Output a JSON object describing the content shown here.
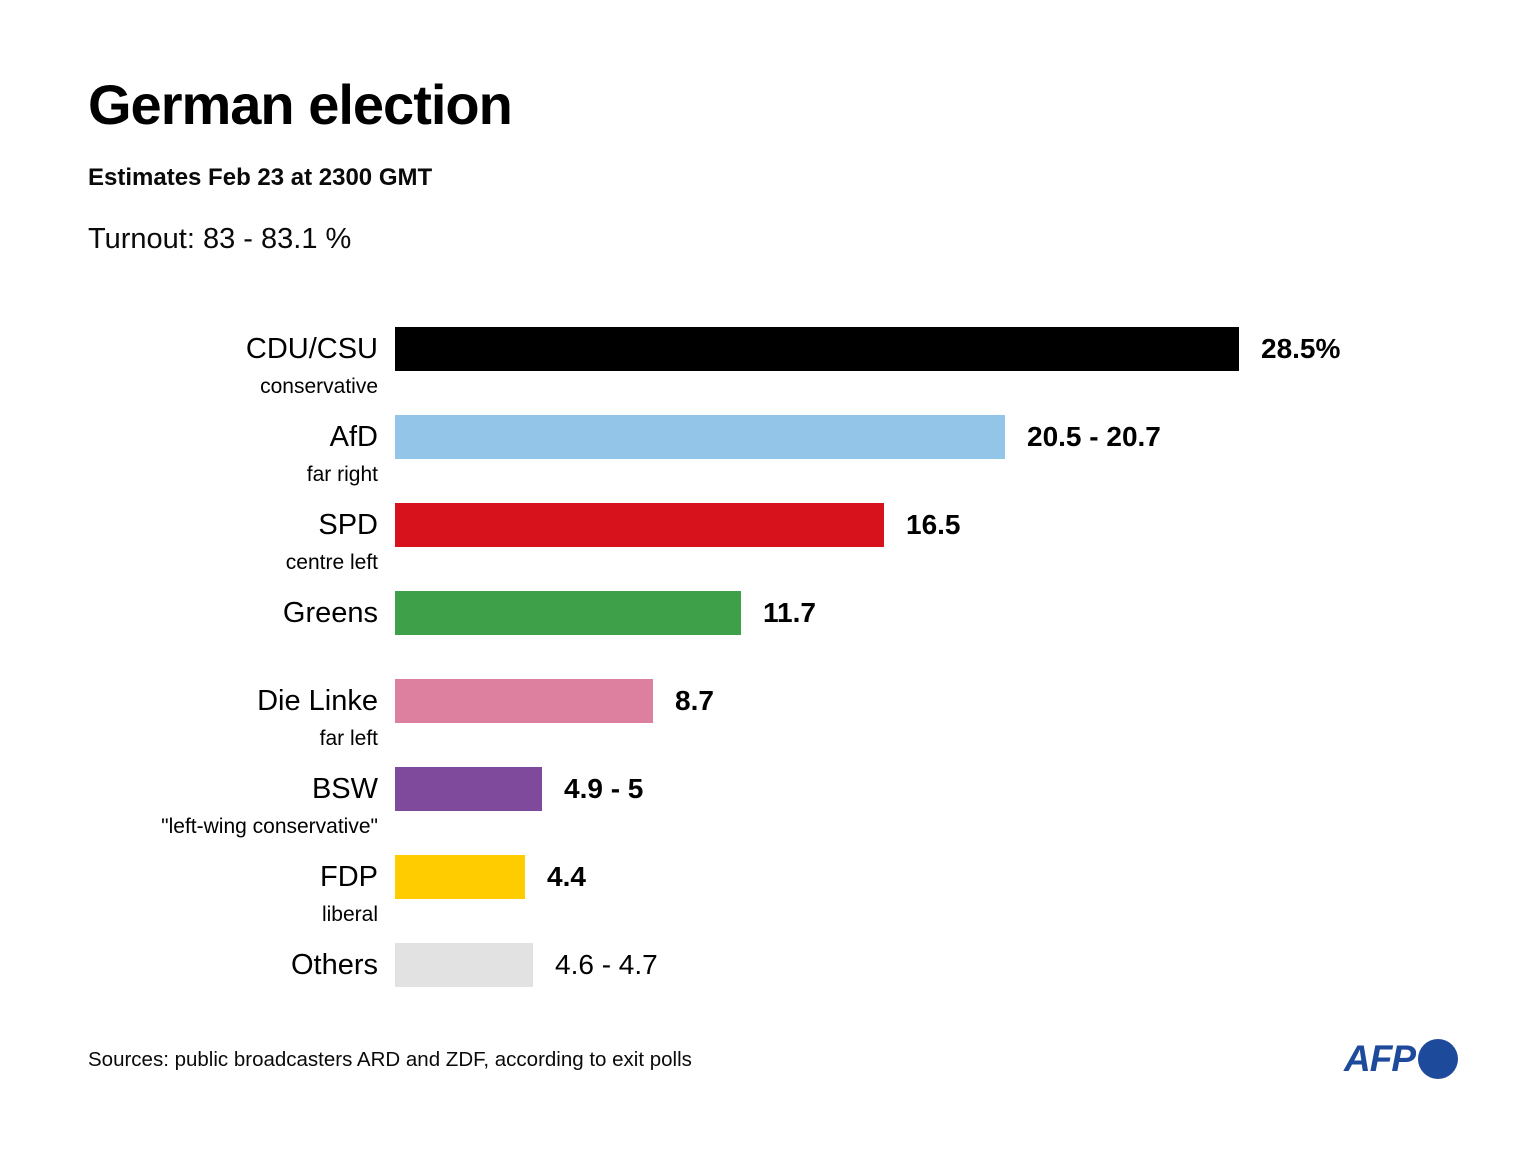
{
  "title": "German election",
  "subtitle": "Estimates Feb 23 at 2300 GMT",
  "turnout": "Turnout: 83 - 83.1 %",
  "source_note": "Sources: public broadcasters ARD and ZDF, according to exit polls",
  "logo": {
    "text": "AFP",
    "color": "#1E4A9C"
  },
  "chart_data": {
    "type": "bar",
    "orientation": "horizontal",
    "unit": "%",
    "xlim": [
      0,
      30
    ],
    "grid": false,
    "categories": [
      "CDU/CSU",
      "AfD",
      "SPD",
      "Greens",
      "Die Linke",
      "BSW",
      "FDP",
      "Others"
    ],
    "rows": [
      {
        "party": "CDU/CSU",
        "descriptor": "conservative",
        "value": 28.5,
        "value_label": "28.5%",
        "color": "#000000",
        "bold_value": true
      },
      {
        "party": "AfD",
        "descriptor": "far right",
        "value": 20.6,
        "value_range": [
          20.5,
          20.7
        ],
        "value_label": "20.5 - 20.7",
        "color": "#92C5E8",
        "bold_value": true
      },
      {
        "party": "SPD",
        "descriptor": "centre left",
        "value": 16.5,
        "value_label": "16.5",
        "color": "#D8121C",
        "bold_value": true
      },
      {
        "party": "Greens",
        "descriptor": "",
        "value": 11.7,
        "value_label": "11.7",
        "color": "#3FA04A",
        "bold_value": true
      },
      {
        "party": "Die Linke",
        "descriptor": "far left",
        "value": 8.7,
        "value_label": "8.7",
        "color": "#DD7F9F",
        "bold_value": true
      },
      {
        "party": "BSW",
        "descriptor": "\"left-wing conservative\"",
        "value": 4.95,
        "value_range": [
          4.9,
          5
        ],
        "value_label": "4.9 - 5",
        "color": "#7F4A9B",
        "bold_value": true
      },
      {
        "party": "FDP",
        "descriptor": "liberal",
        "value": 4.4,
        "value_label": "4.4",
        "color": "#FFCC00",
        "bold_value": true
      },
      {
        "party": "Others",
        "descriptor": "",
        "value": 4.65,
        "value_range": [
          4.6,
          4.7
        ],
        "value_label": "4.6 - 4.7",
        "color": "#E2E2E2",
        "bold_value": false
      }
    ]
  }
}
